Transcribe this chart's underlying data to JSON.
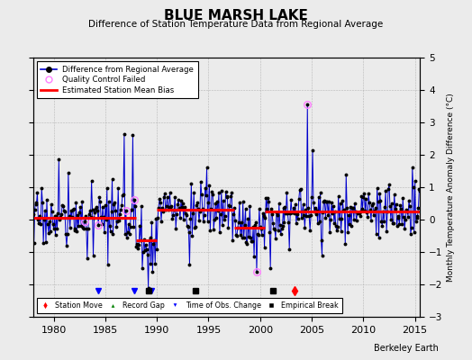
{
  "title": "BLUE MARSH LAKE",
  "subtitle": "Difference of Station Temperature Data from Regional Average",
  "ylabel_right": "Monthly Temperature Anomaly Difference (°C)",
  "xlim": [
    1978.0,
    2015.5
  ],
  "ylim": [
    -3.0,
    5.0
  ],
  "yticks": [
    -3,
    -2,
    -1,
    0,
    1,
    2,
    3,
    4,
    5
  ],
  "xticks": [
    1980,
    1985,
    1990,
    1995,
    2000,
    2005,
    2010,
    2015
  ],
  "background_color": "#ebebeb",
  "line_color": "#0000cc",
  "marker_color": "#000000",
  "qc_failed_color": "#ff80ff",
  "bias_color": "#ff0000",
  "watermark": "Berkeley Earth",
  "segment_biases": [
    {
      "start": 1978.0,
      "end": 1988.0,
      "bias": 0.05
    },
    {
      "start": 1988.0,
      "end": 1990.0,
      "bias": -0.65
    },
    {
      "start": 1990.0,
      "end": 1997.5,
      "bias": 0.3
    },
    {
      "start": 1997.5,
      "end": 2000.5,
      "bias": -0.25
    },
    {
      "start": 2000.5,
      "end": 2015.5,
      "bias": 0.25
    }
  ],
  "station_moves": [
    2003.3
  ],
  "record_gaps": [],
  "obs_changes": [
    1984.3,
    1987.8,
    1989.5
  ],
  "empirical_breaks": [
    1989.2,
    1993.7,
    2001.2
  ],
  "qc_failed_times": [
    1983.0,
    1984.3,
    1987.0,
    1987.8,
    1999.7,
    2004.6
  ],
  "marker_y": -2.2,
  "random_seed": 17,
  "noise_std": 0.42,
  "spike_data": [
    {
      "t": 1980.5,
      "v": 1.85
    },
    {
      "t": 1983.8,
      "v": -1.1
    },
    {
      "t": 1986.8,
      "v": 2.65
    },
    {
      "t": 1987.7,
      "v": 2.6
    },
    {
      "t": 1988.2,
      "v": -0.9
    },
    {
      "t": 1988.6,
      "v": -1.5
    },
    {
      "t": 1989.2,
      "v": -2.1
    },
    {
      "t": 1989.6,
      "v": -1.6
    },
    {
      "t": 1993.2,
      "v": -1.4
    },
    {
      "t": 1994.8,
      "v": 1.6
    },
    {
      "t": 1999.7,
      "v": -1.6
    },
    {
      "t": 2001.0,
      "v": -1.5
    },
    {
      "t": 2004.6,
      "v": 3.55
    },
    {
      "t": 2005.1,
      "v": 2.15
    },
    {
      "t": 2006.0,
      "v": -1.1
    }
  ]
}
